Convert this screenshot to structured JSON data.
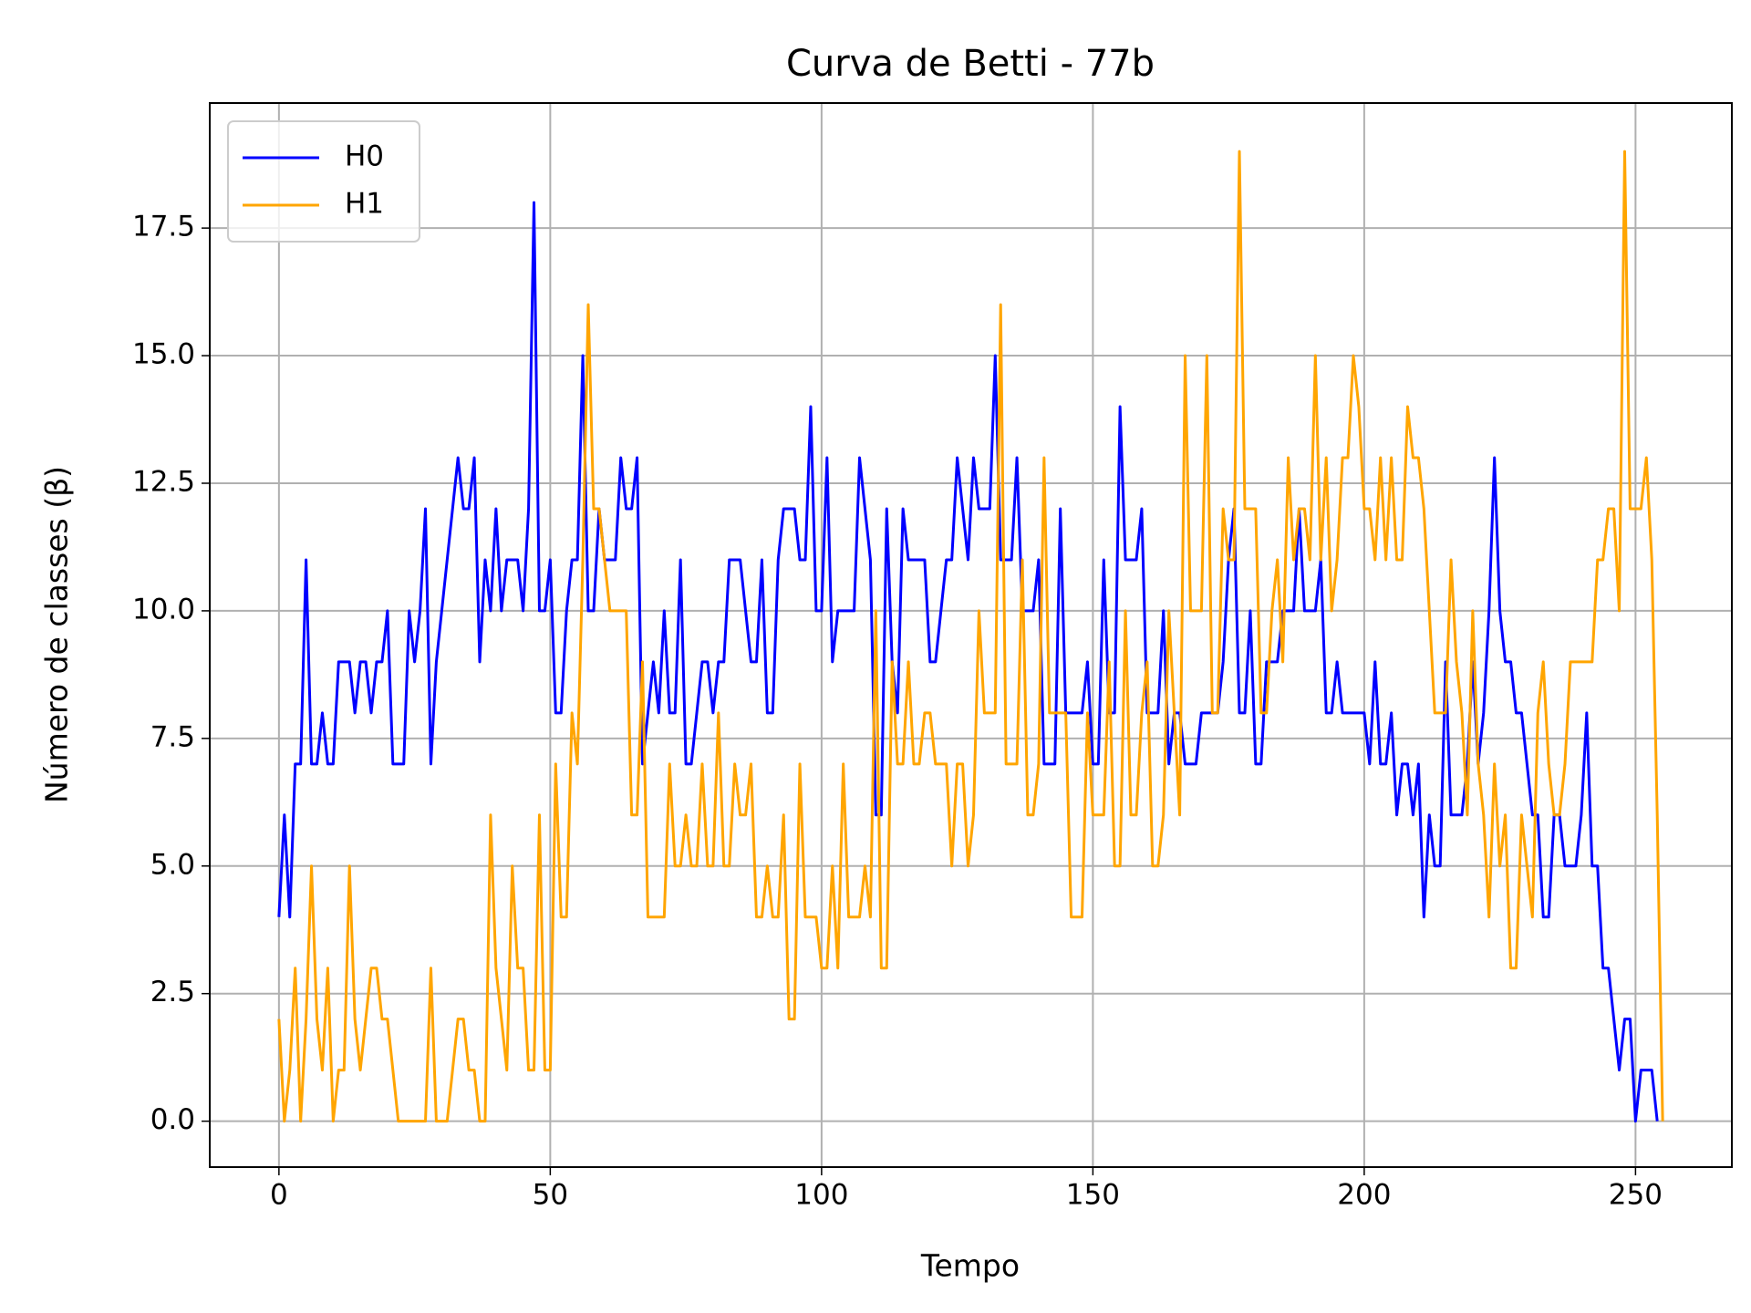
{
  "chart_data": {
    "type": "line",
    "title": "Curva de Betti - 77b",
    "xlabel": "Tempo",
    "ylabel": "Número de classes (β)",
    "x": [
      0,
      1,
      2,
      3,
      4,
      5,
      6,
      7,
      8,
      9,
      10,
      11,
      12,
      13,
      14,
      15,
      16,
      17,
      18,
      19,
      20,
      21,
      22,
      23,
      24,
      25,
      26,
      27,
      28,
      29,
      30,
      31,
      32,
      33,
      34,
      35,
      36,
      37,
      38,
      39,
      40,
      41,
      42,
      43,
      44,
      45,
      46,
      47,
      48,
      49,
      50,
      51,
      52,
      53,
      54,
      55,
      56,
      57,
      58,
      59,
      60,
      61,
      62,
      63,
      64,
      65,
      66,
      67,
      68,
      69,
      70,
      71,
      72,
      73,
      74,
      75,
      76,
      77,
      78,
      79,
      80,
      81,
      82,
      83,
      84,
      85,
      86,
      87,
      88,
      89,
      90,
      91,
      92,
      93,
      94,
      95,
      96,
      97,
      98,
      99,
      100,
      101,
      102,
      103,
      104,
      105,
      106,
      107,
      108,
      109,
      110,
      111,
      112,
      113,
      114,
      115,
      116,
      117,
      118,
      119,
      120,
      121,
      122,
      123,
      124,
      125,
      126,
      127,
      128,
      129,
      130,
      131,
      132,
      133,
      134,
      135,
      136,
      137,
      138,
      139,
      140,
      141,
      142,
      143,
      144,
      145,
      146,
      147,
      148,
      149,
      150,
      151,
      152,
      153,
      154,
      155,
      156,
      157,
      158,
      159,
      160,
      161,
      162,
      163,
      164,
      165,
      166,
      167,
      168,
      169,
      170,
      171,
      172,
      173,
      174,
      175,
      176,
      177,
      178,
      179,
      180,
      181,
      182,
      183,
      184,
      185,
      186,
      187,
      188,
      189,
      190,
      191,
      192,
      193,
      194,
      195,
      196,
      197,
      198,
      199,
      200,
      201,
      202,
      203,
      204,
      205,
      206,
      207,
      208,
      209,
      210,
      211,
      212,
      213,
      214,
      215,
      216,
      217,
      218,
      219,
      220,
      221,
      222,
      223,
      224,
      225,
      226,
      227,
      228,
      229,
      230,
      231,
      232,
      233,
      234,
      235,
      236,
      237,
      238,
      239,
      240,
      241,
      242,
      243,
      244,
      245,
      246,
      247,
      248,
      249,
      250,
      251,
      252,
      253,
      254,
      255
    ],
    "series": [
      {
        "name": "H0",
        "color": "#0000ff",
        "values": [
          4,
          6,
          4,
          7,
          7,
          11,
          7,
          7,
          8,
          7,
          7,
          9,
          9,
          9,
          8,
          9,
          9,
          8,
          9,
          9,
          10,
          7,
          7,
          7,
          10,
          9,
          10,
          12,
          7,
          9,
          10,
          11,
          12,
          13,
          12,
          12,
          13,
          9,
          11,
          10,
          12,
          10,
          11,
          11,
          11,
          10,
          12,
          18,
          10,
          10,
          11,
          8,
          8,
          10,
          11,
          11,
          15,
          10,
          10,
          12,
          11,
          11,
          11,
          13,
          12,
          12,
          13,
          7,
          8,
          9,
          8,
          10,
          8,
          8,
          11,
          7,
          7,
          8,
          9,
          9,
          8,
          9,
          9,
          11,
          11,
          11,
          10,
          9,
          9,
          11,
          8,
          8,
          11,
          12,
          12,
          12,
          11,
          11,
          14,
          10,
          10,
          13,
          9,
          10,
          10,
          10,
          10,
          13,
          12,
          11,
          6,
          6,
          12,
          9,
          8,
          12,
          11,
          11,
          11,
          11,
          9,
          9,
          10,
          11,
          11,
          13,
          12,
          11,
          13,
          12,
          12,
          12,
          15,
          11,
          11,
          11,
          13,
          10,
          10,
          10,
          11,
          7,
          7,
          7,
          12,
          8,
          8,
          8,
          8,
          9,
          7,
          7,
          11,
          8,
          8,
          14,
          11,
          11,
          11,
          12,
          8,
          8,
          8,
          10,
          7,
          8,
          8,
          7,
          7,
          7,
          8,
          8,
          8,
          8,
          9,
          11,
          12,
          8,
          8,
          10,
          7,
          7,
          9,
          9,
          9,
          10,
          10,
          10,
          12,
          10,
          10,
          10,
          11,
          8,
          8,
          9,
          8,
          8,
          8,
          8,
          8,
          7,
          9,
          7,
          7,
          8,
          6,
          7,
          7,
          6,
          7,
          4,
          6,
          5,
          5,
          9,
          6,
          6,
          6,
          7,
          9,
          7,
          8,
          10,
          13,
          10,
          9,
          9,
          8,
          8,
          7,
          6,
          6,
          4,
          4,
          6,
          6,
          5,
          5,
          5,
          6,
          8,
          5,
          5,
          3,
          3,
          2,
          1,
          2,
          2,
          0,
          1,
          1,
          1,
          0,
          null
        ]
      },
      {
        "name": "H1",
        "color": "#ffa500",
        "values": [
          2,
          0,
          1,
          3,
          0,
          2,
          5,
          2,
          1,
          3,
          0,
          1,
          1,
          5,
          2,
          1,
          2,
          3,
          3,
          2,
          2,
          1,
          0,
          0,
          0,
          0,
          0,
          0,
          3,
          0,
          0,
          0,
          1,
          2,
          2,
          1,
          1,
          0,
          0,
          6,
          3,
          2,
          1,
          5,
          3,
          3,
          1,
          1,
          6,
          1,
          1,
          7,
          4,
          4,
          8,
          7,
          11,
          16,
          12,
          12,
          11,
          10,
          10,
          10,
          10,
          6,
          6,
          9,
          4,
          4,
          4,
          4,
          7,
          5,
          5,
          6,
          5,
          5,
          7,
          5,
          5,
          8,
          5,
          5,
          7,
          6,
          6,
          7,
          4,
          4,
          5,
          4,
          4,
          6,
          2,
          2,
          7,
          4,
          4,
          4,
          3,
          3,
          5,
          3,
          7,
          4,
          4,
          4,
          5,
          4,
          10,
          3,
          3,
          9,
          7,
          7,
          9,
          7,
          7,
          8,
          8,
          7,
          7,
          7,
          5,
          7,
          7,
          5,
          6,
          10,
          8,
          8,
          8,
          16,
          7,
          7,
          7,
          11,
          6,
          6,
          7,
          13,
          8,
          8,
          8,
          8,
          4,
          4,
          4,
          8,
          6,
          6,
          6,
          9,
          5,
          5,
          10,
          6,
          6,
          8,
          9,
          5,
          5,
          6,
          10,
          8,
          6,
          15,
          10,
          10,
          10,
          15,
          8,
          8,
          12,
          11,
          11,
          19,
          12,
          12,
          12,
          8,
          8,
          10,
          11,
          9,
          13,
          11,
          12,
          12,
          11,
          15,
          11,
          13,
          10,
          11,
          13,
          13,
          15,
          14,
          12,
          12,
          11,
          13,
          11,
          13,
          11,
          11,
          14,
          13,
          13,
          12,
          10,
          8,
          8,
          8,
          11,
          9,
          8,
          6,
          10,
          7,
          6,
          4,
          7,
          5,
          6,
          3,
          3,
          6,
          5,
          4,
          8,
          9,
          7,
          6,
          6,
          7,
          9,
          9,
          9,
          9,
          9,
          11,
          11,
          12,
          12,
          10,
          19,
          12,
          12,
          12,
          13,
          11,
          6,
          0
        ]
      }
    ],
    "xlim": [
      -12.75,
      267.75
    ],
    "ylim": [
      -0.9,
      19.95
    ],
    "xticks": [
      0,
      50,
      100,
      150,
      200,
      250
    ],
    "yticks": [
      {
        "value": 0,
        "label": "0.0"
      },
      2.5,
      {
        "value": 5,
        "label": "5.0"
      },
      7.5,
      {
        "value": 10,
        "label": "10.0"
      },
      12.5,
      {
        "value": 15,
        "label": "15.0"
      },
      17.5
    ],
    "grid": true,
    "legend": "upper-left"
  }
}
